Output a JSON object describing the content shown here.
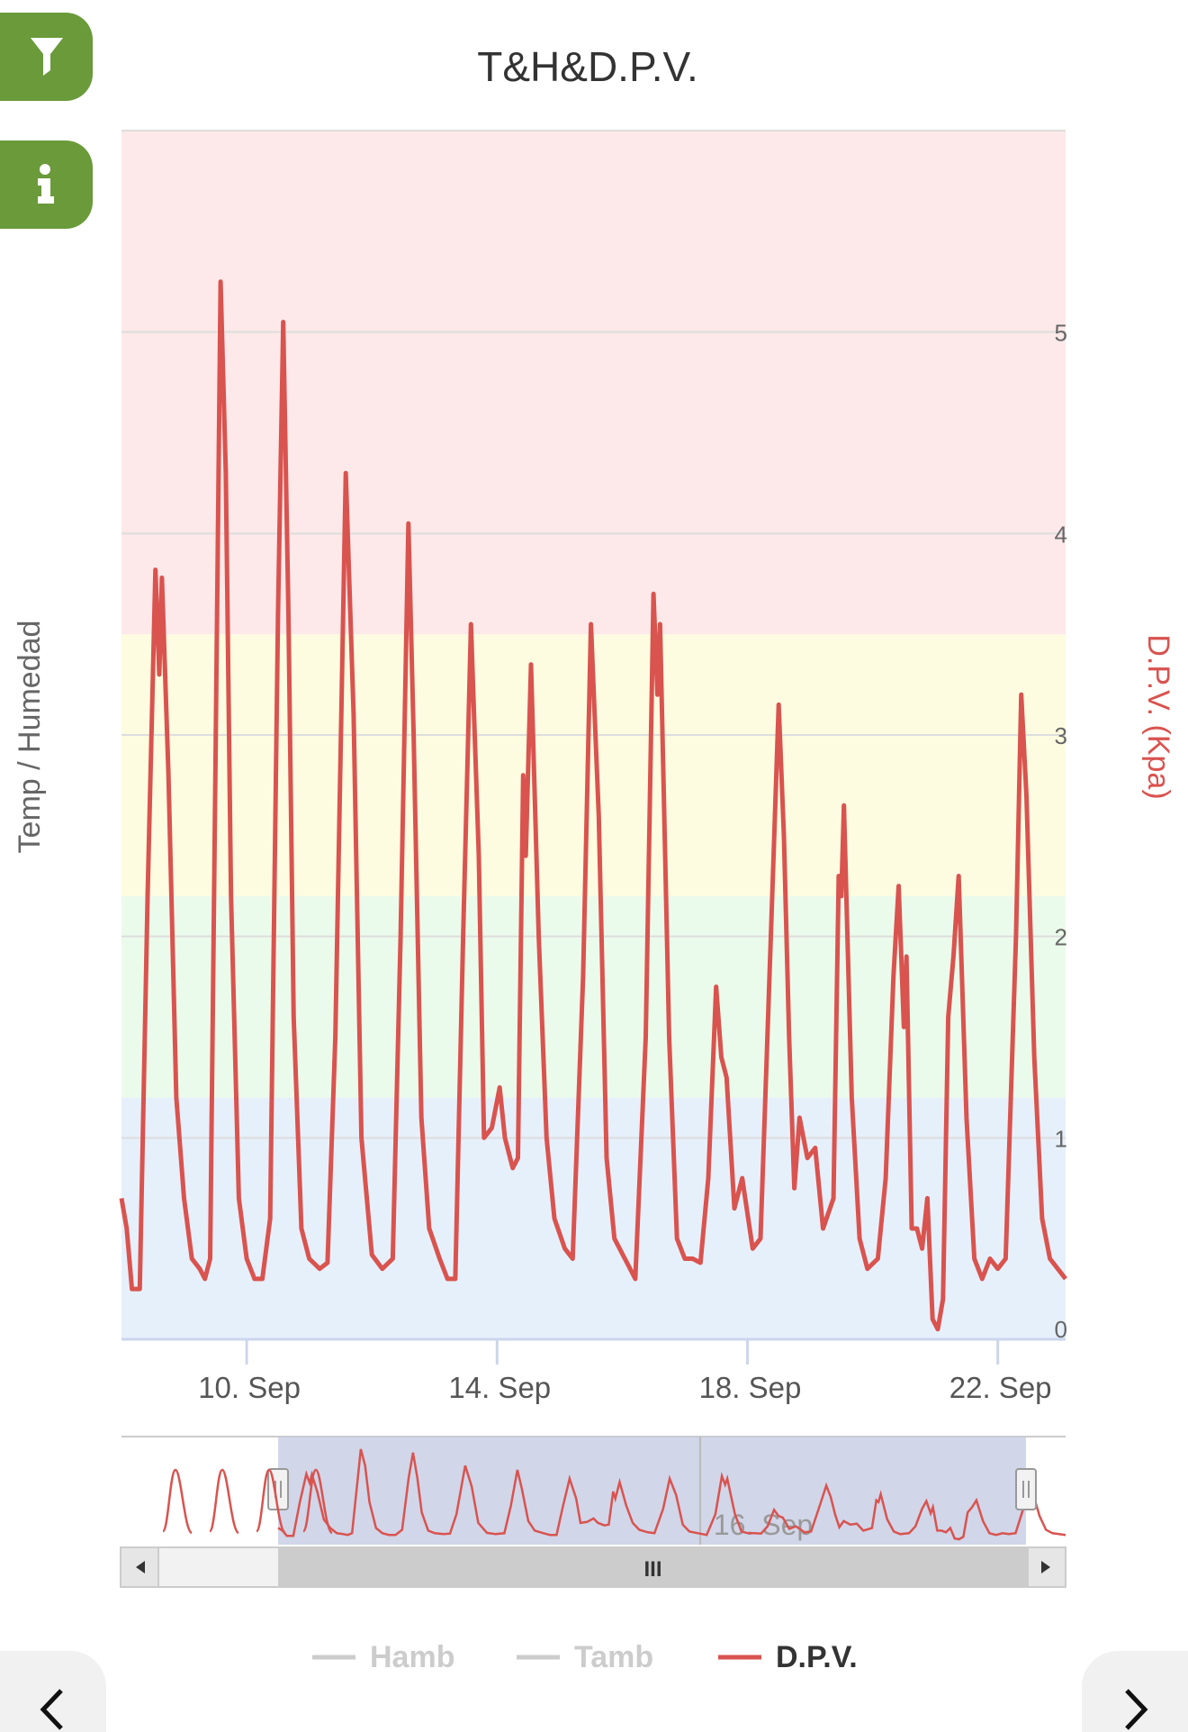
{
  "chart_data": {
    "type": "line",
    "title": "T&H&D.P.V.",
    "y_left_label": "Temp / Humedad",
    "y_right_label": "D.P.V. (Kpa)",
    "y_right_ticks": [
      "0",
      "1",
      "2",
      "3",
      "4",
      "5"
    ],
    "ylim_right": [
      0,
      6
    ],
    "xlim": [
      "2022-09-08T00:00",
      "2022-09-23T02:00"
    ],
    "x_ticks": [
      {
        "label": "10. Sep",
        "date": "2022-09-10"
      },
      {
        "label": "14. Sep",
        "date": "2022-09-14"
      },
      {
        "label": "18. Sep",
        "date": "2022-09-18"
      },
      {
        "label": "22. Sep",
        "date": "2022-09-22"
      }
    ],
    "bands": [
      {
        "from": 0,
        "to": 1.2,
        "color": "#e6f0fb"
      },
      {
        "from": 1.2,
        "to": 2.2,
        "color": "#ebfbeb"
      },
      {
        "from": 2.2,
        "to": 3.5,
        "color": "#fdfce0"
      },
      {
        "from": 3.5,
        "to": 6.0,
        "color": "#fde9e9"
      }
    ],
    "series": [
      {
        "name": "Hamb",
        "color": "#cccccc",
        "visible": false,
        "points": []
      },
      {
        "name": "Tamb",
        "color": "#cccccc",
        "visible": false,
        "points": []
      },
      {
        "name": "D.P.V.",
        "color": "#d9534f",
        "visible": true,
        "points": [
          [
            "2022-09-08T00:00",
            0.7
          ],
          [
            "2022-09-08T02:00",
            0.55
          ],
          [
            "2022-09-08T04:00",
            0.25
          ],
          [
            "2022-09-08T07:00",
            0.25
          ],
          [
            "2022-09-08T10:00",
            2.2
          ],
          [
            "2022-09-08T13:00",
            3.82
          ],
          [
            "2022-09-08T14:30",
            3.3
          ],
          [
            "2022-09-08T15:30",
            3.78
          ],
          [
            "2022-09-08T18:00",
            2.8
          ],
          [
            "2022-09-08T21:00",
            1.2
          ],
          [
            "2022-09-09T00:00",
            0.7
          ],
          [
            "2022-09-09T03:00",
            0.4
          ],
          [
            "2022-09-09T06:00",
            0.35
          ],
          [
            "2022-09-09T08:00",
            0.3
          ],
          [
            "2022-09-09T10:00",
            0.4
          ],
          [
            "2022-09-09T12:00",
            2.8
          ],
          [
            "2022-09-09T14:00",
            5.25
          ],
          [
            "2022-09-09T16:00",
            4.3
          ],
          [
            "2022-09-09T18:00",
            2.2
          ],
          [
            "2022-09-09T21:00",
            0.7
          ],
          [
            "2022-09-10T00:00",
            0.4
          ],
          [
            "2022-09-10T03:00",
            0.3
          ],
          [
            "2022-09-10T06:00",
            0.3
          ],
          [
            "2022-09-10T09:00",
            0.6
          ],
          [
            "2022-09-10T12:00",
            3.6
          ],
          [
            "2022-09-10T14:00",
            5.05
          ],
          [
            "2022-09-10T16:00",
            3.6
          ],
          [
            "2022-09-10T18:00",
            1.6
          ],
          [
            "2022-09-10T21:00",
            0.55
          ],
          [
            "2022-09-11T00:00",
            0.4
          ],
          [
            "2022-09-11T04:00",
            0.35
          ],
          [
            "2022-09-11T07:00",
            0.38
          ],
          [
            "2022-09-11T10:00",
            1.5
          ],
          [
            "2022-09-11T14:00",
            4.3
          ],
          [
            "2022-09-11T17:00",
            3.1
          ],
          [
            "2022-09-11T20:00",
            1.0
          ],
          [
            "2022-09-12T00:00",
            0.42
          ],
          [
            "2022-09-12T04:00",
            0.35
          ],
          [
            "2022-09-12T08:00",
            0.4
          ],
          [
            "2022-09-12T11:00",
            2.0
          ],
          [
            "2022-09-12T14:00",
            4.05
          ],
          [
            "2022-09-12T16:00",
            3.0
          ],
          [
            "2022-09-12T19:00",
            1.1
          ],
          [
            "2022-09-12T22:00",
            0.55
          ],
          [
            "2022-09-13T02:00",
            0.4
          ],
          [
            "2022-09-13T05:00",
            0.3
          ],
          [
            "2022-09-13T08:00",
            0.3
          ],
          [
            "2022-09-13T11:00",
            2.0
          ],
          [
            "2022-09-13T14:00",
            3.55
          ],
          [
            "2022-09-13T17:00",
            2.4
          ],
          [
            "2022-09-13T19:00",
            1.0
          ],
          [
            "2022-09-13T22:00",
            1.05
          ],
          [
            "2022-09-14T01:00",
            1.25
          ],
          [
            "2022-09-14T03:00",
            1.0
          ],
          [
            "2022-09-14T06:00",
            0.85
          ],
          [
            "2022-09-14T08:00",
            0.9
          ],
          [
            "2022-09-14T10:00",
            2.8
          ],
          [
            "2022-09-14T11:00",
            2.4
          ],
          [
            "2022-09-14T13:00",
            3.35
          ],
          [
            "2022-09-14T16:00",
            2.0
          ],
          [
            "2022-09-14T19:00",
            1.0
          ],
          [
            "2022-09-14T22:00",
            0.6
          ],
          [
            "2022-09-15T02:00",
            0.45
          ],
          [
            "2022-09-15T05:00",
            0.4
          ],
          [
            "2022-09-15T09:00",
            1.8
          ],
          [
            "2022-09-15T12:00",
            3.55
          ],
          [
            "2022-09-15T15:00",
            2.6
          ],
          [
            "2022-09-15T18:00",
            0.9
          ],
          [
            "2022-09-15T21:00",
            0.5
          ],
          [
            "2022-09-16T01:00",
            0.4
          ],
          [
            "2022-09-16T05:00",
            0.3
          ],
          [
            "2022-09-16T09:00",
            1.5
          ],
          [
            "2022-09-16T12:00",
            3.7
          ],
          [
            "2022-09-16T13:30",
            3.2
          ],
          [
            "2022-09-16T14:30",
            3.55
          ],
          [
            "2022-09-16T18:00",
            1.5
          ],
          [
            "2022-09-16T21:00",
            0.5
          ],
          [
            "2022-09-17T00:00",
            0.4
          ],
          [
            "2022-09-17T03:00",
            0.4
          ],
          [
            "2022-09-17T06:00",
            0.38
          ],
          [
            "2022-09-17T09:00",
            0.8
          ],
          [
            "2022-09-17T12:00",
            1.75
          ],
          [
            "2022-09-17T14:00",
            1.4
          ],
          [
            "2022-09-17T16:00",
            1.3
          ],
          [
            "2022-09-17T19:00",
            0.65
          ],
          [
            "2022-09-17T22:00",
            0.8
          ],
          [
            "2022-09-18T02:00",
            0.45
          ],
          [
            "2022-09-18T05:00",
            0.5
          ],
          [
            "2022-09-18T09:00",
            2.0
          ],
          [
            "2022-09-18T12:00",
            3.15
          ],
          [
            "2022-09-18T14:00",
            2.5
          ],
          [
            "2022-09-18T16:00",
            1.5
          ],
          [
            "2022-09-18T18:00",
            0.75
          ],
          [
            "2022-09-18T20:00",
            1.1
          ],
          [
            "2022-09-18T23:00",
            0.9
          ],
          [
            "2022-09-19T02:00",
            0.95
          ],
          [
            "2022-09-19T05:00",
            0.55
          ],
          [
            "2022-09-19T09:00",
            0.7
          ],
          [
            "2022-09-19T11:00",
            2.3
          ],
          [
            "2022-09-19T12:00",
            2.2
          ],
          [
            "2022-09-19T13:00",
            2.65
          ],
          [
            "2022-09-19T16:00",
            1.2
          ],
          [
            "2022-09-19T19:00",
            0.5
          ],
          [
            "2022-09-19T22:00",
            0.35
          ],
          [
            "2022-09-20T02:00",
            0.4
          ],
          [
            "2022-09-20T05:00",
            0.8
          ],
          [
            "2022-09-20T08:00",
            1.8
          ],
          [
            "2022-09-20T10:00",
            2.25
          ],
          [
            "2022-09-20T12:00",
            1.55
          ],
          [
            "2022-09-20T13:00",
            1.9
          ],
          [
            "2022-09-20T15:00",
            0.55
          ],
          [
            "2022-09-20T17:00",
            0.55
          ],
          [
            "2022-09-20T19:00",
            0.45
          ],
          [
            "2022-09-20T21:00",
            0.7
          ],
          [
            "2022-09-20T23:00",
            0.1
          ],
          [
            "2022-09-21T01:00",
            0.05
          ],
          [
            "2022-09-21T03:00",
            0.2
          ],
          [
            "2022-09-21T05:00",
            1.6
          ],
          [
            "2022-09-21T07:00",
            1.9
          ],
          [
            "2022-09-21T09:00",
            2.3
          ],
          [
            "2022-09-21T12:00",
            1.1
          ],
          [
            "2022-09-21T15:00",
            0.4
          ],
          [
            "2022-09-21T18:00",
            0.3
          ],
          [
            "2022-09-21T21:00",
            0.4
          ],
          [
            "2022-09-22T00:00",
            0.35
          ],
          [
            "2022-09-22T03:00",
            0.4
          ],
          [
            "2022-09-22T07:00",
            2.0
          ],
          [
            "2022-09-22T09:00",
            3.2
          ],
          [
            "2022-09-22T11:00",
            2.7
          ],
          [
            "2022-09-22T14:00",
            1.4
          ],
          [
            "2022-09-22T17:00",
            0.6
          ],
          [
            "2022-09-22T20:00",
            0.4
          ],
          [
            "2022-09-22T23:00",
            0.35
          ],
          [
            "2022-09-23T02:00",
            0.3
          ]
        ]
      }
    ],
    "legend": {
      "placement": "bottom-center",
      "items": [
        "Hamb",
        "Tamb",
        "D.P.V."
      ]
    },
    "navigator": {
      "label": "16. Sep",
      "scrollbar_grip": "III",
      "selection": [
        "2022-09-08T00:00",
        "2022-09-23T02:00"
      ],
      "range": [
        "2022-09-05T00:00",
        "2022-09-23T02:00"
      ]
    }
  }
}
